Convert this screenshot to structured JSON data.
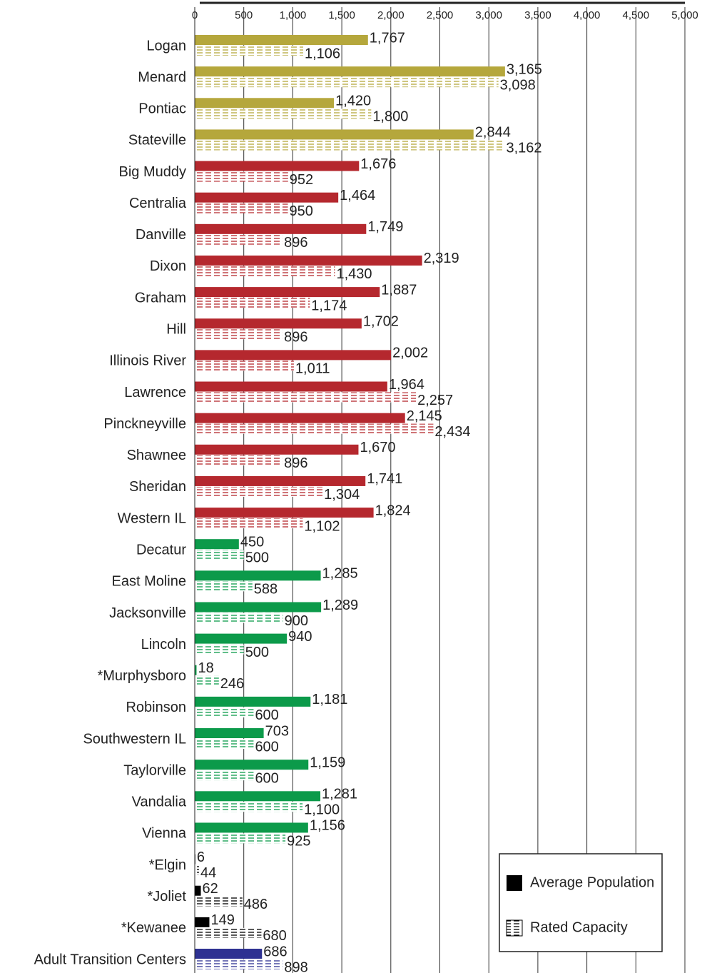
{
  "chart_data": {
    "type": "bar",
    "orientation": "horizontal",
    "categories": [
      "Logan",
      "Menard",
      "Pontiac",
      "Stateville",
      "Big Muddy",
      "Centralia",
      "Danville",
      "Dixon",
      "Graham",
      "Hill",
      "Illinois River",
      "Lawrence",
      "Pinckneyville",
      "Shawnee",
      "Sheridan",
      "Western IL",
      "Decatur",
      "East Moline",
      "Jacksonville",
      "Lincoln",
      "*Murphysboro",
      "Robinson",
      "Southwestern IL",
      "Taylorville",
      "Vandalia",
      "Vienna",
      "*Elgin",
      "*Joliet",
      "*Kewanee",
      "Adult Transition Centers"
    ],
    "colors": [
      "#b5a73c",
      "#b5a73c",
      "#b5a73c",
      "#b5a73c",
      "#b5282e",
      "#b5282e",
      "#b5282e",
      "#b5282e",
      "#b5282e",
      "#b5282e",
      "#b5282e",
      "#b5282e",
      "#b5282e",
      "#b5282e",
      "#b5282e",
      "#b5282e",
      "#0c9a4a",
      "#0c9a4a",
      "#0c9a4a",
      "#0c9a4a",
      "#0c9a4a",
      "#0c9a4a",
      "#0c9a4a",
      "#0c9a4a",
      "#0c9a4a",
      "#0c9a4a",
      "#000000",
      "#000000",
      "#000000",
      "#2e3192"
    ],
    "series": [
      {
        "name": "Average Population",
        "color": "#000000",
        "pattern": "solid",
        "values": [
          1767,
          3165,
          1420,
          2844,
          1676,
          1464,
          1749,
          2319,
          1887,
          1702,
          2002,
          1964,
          2145,
          1670,
          1741,
          1824,
          450,
          1285,
          1289,
          940,
          18,
          1181,
          703,
          1159,
          1281,
          1156,
          6,
          62,
          149,
          686
        ],
        "value_labels": [
          "1,767",
          "3,165",
          "1,420",
          "2,844",
          "1,676",
          "1,464",
          "1,749",
          "2,319",
          "1,887",
          "1,702",
          "2,002",
          "1,964",
          "2,145",
          "1,670",
          "1,741",
          "1,824",
          "450",
          "1,285",
          "1,289",
          "940",
          "18",
          "1,181",
          "703",
          "1,159",
          "1,281",
          "1,156",
          "6",
          "62",
          "149",
          "686"
        ]
      },
      {
        "name": "Rated Capacity",
        "color": "#000000",
        "pattern": "dashed",
        "values": [
          1106,
          3098,
          1800,
          3162,
          952,
          950,
          896,
          1430,
          1174,
          896,
          1011,
          2257,
          2434,
          896,
          1304,
          1102,
          500,
          588,
          900,
          500,
          246,
          600,
          600,
          600,
          1100,
          925,
          44,
          486,
          680,
          898
        ],
        "value_labels": [
          "1,106",
          "3,098",
          "1,800",
          "3,162",
          "952",
          "950",
          "896",
          "1,430",
          "1,174",
          "896",
          "1,011",
          "2,257",
          "2,434",
          "896",
          "1,304",
          "1,102",
          "500",
          "588",
          "900",
          "500",
          "246",
          "600",
          "600",
          "600",
          "1,100",
          "925",
          "44",
          "486",
          "680",
          "898"
        ]
      }
    ],
    "xlim": [
      0,
      5000
    ],
    "xticks": [
      0,
      500,
      {
        "value": 1000,
        "label": "1,000"
      },
      {
        "value": 1500,
        "label": "1,500"
      },
      {
        "value": 2000,
        "label": "2,000"
      },
      {
        "value": 2500,
        "label": "2,500"
      },
      {
        "value": 3000,
        "label": "3,000"
      },
      {
        "value": 3500,
        "label": "3,500"
      },
      {
        "value": 4000,
        "label": "4,000"
      },
      {
        "value": 4500,
        "label": "4,500"
      },
      {
        "value": 5000,
        "label": "5,000"
      }
    ],
    "grid": true,
    "legend": "lower right"
  }
}
